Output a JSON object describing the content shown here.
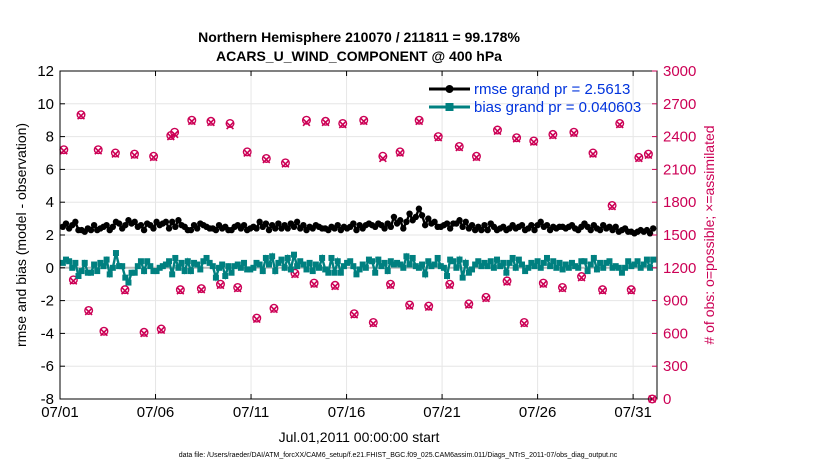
{
  "chart_data": {
    "type": "line",
    "title_line1": "Northern Hemisphere 210070 / 211811 = 99.178%",
    "title_line2": "ACARS_U_WIND_COMPONENT @ 400 hPa",
    "xlabel": "Jul.01,2011 00:00:00 start",
    "ylabel_left": "rmse and bias (model - observation)",
    "ylabel_right": "# of obs: o=possible; ×=assimilated",
    "footer": "data file: /Users/raeder/DAI/ATM_forcXX/CAM6_setup/f.e21.FHIST_BGC.f09_025.CAM6assim.011/Diags_NTrS_2011-07/obs_diag_output.nc",
    "xlim": [
      0,
      31.25
    ],
    "ylim_left": [
      -8,
      12
    ],
    "ylim_right": [
      0,
      3000
    ],
    "x_ticks": [
      0,
      5,
      10,
      15,
      20,
      25,
      30
    ],
    "x_tick_labels": [
      "07/01",
      "07/06",
      "07/11",
      "07/16",
      "07/21",
      "07/26",
      "07/31"
    ],
    "y_ticks_left": [
      "-8",
      "-6",
      "-4",
      "-2",
      "0",
      "2",
      "4",
      "6",
      "8",
      "10",
      "12"
    ],
    "y_ticks_right": [
      "0",
      "300",
      "600",
      "900",
      "1200",
      "1500",
      "1800",
      "2100",
      "2400",
      "2700",
      "3000"
    ],
    "legend": {
      "rmse_label": "rmse grand pr = 2.5613",
      "bias_label": "bias grand pr = 0.040603",
      "position": "top-right"
    },
    "colors": {
      "rmse": "#000000",
      "bias": "#008080",
      "obs": "#cc0055",
      "zero_line": "#bbbbbb",
      "legend_text": "#0033dd"
    },
    "series_rmse": [
      2.5,
      2.7,
      2.4,
      2.6,
      2.8,
      2.3,
      2.3,
      2.2,
      2.4,
      2.3,
      2.6,
      2.3,
      2.4,
      2.5,
      2.6,
      2.3,
      2.5,
      2.8,
      2.7,
      2.4,
      2.6,
      2.9,
      2.7,
      2.8,
      2.5,
      2.6,
      2.3,
      2.7,
      2.6,
      2.4,
      2.8,
      2.6,
      2.7,
      2.8,
      2.4,
      2.8,
      2.5,
      2.9,
      2.6,
      2.5,
      2.3,
      2.3,
      2.6,
      2.4,
      2.7,
      2.6,
      2.5,
      2.4,
      2.4,
      2.3,
      2.6,
      2.4,
      2.5,
      2.3,
      2.3,
      2.5,
      2.6,
      2.4,
      2.6,
      2.3,
      2.4,
      2.5,
      2.4,
      2.8,
      2.5,
      2.7,
      2.3,
      2.6,
      2.4,
      2.7,
      2.4,
      2.6,
      2.4,
      2.7,
      2.5,
      2.8,
      2.4,
      2.6,
      2.3,
      2.5,
      2.4,
      2.6,
      2.5,
      2.4,
      2.4,
      2.3,
      2.5,
      2.4,
      2.6,
      2.3,
      2.5,
      2.4,
      2.5,
      2.7,
      2.3,
      2.6,
      2.4,
      2.6,
      2.7,
      2.6,
      2.5,
      2.7,
      2.6,
      2.4,
      2.7,
      2.5,
      3.1,
      2.7,
      2.9,
      2.4,
      2.8,
      3.3,
      2.9,
      3.1,
      3.6,
      3.2,
      2.6,
      3.0,
      2.7,
      2.8,
      2.5,
      2.5,
      2.6,
      2.7,
      2.4,
      2.7,
      2.7,
      2.9,
      2.5,
      2.8,
      2.4,
      2.6,
      2.3,
      2.5,
      2.3,
      2.6,
      2.3,
      2.7,
      2.5,
      2.3,
      2.4,
      2.5,
      2.3,
      2.4,
      2.6,
      2.4,
      2.5,
      2.6,
      2.3,
      2.4,
      2.6,
      2.3,
      2.6,
      2.8,
      2.5,
      2.6,
      2.3,
      2.5,
      2.4,
      2.5,
      2.5,
      2.4,
      2.5,
      2.6,
      2.4,
      2.3,
      2.5,
      2.7,
      2.5,
      2.3,
      2.6,
      2.4,
      2.3,
      2.6,
      2.4,
      2.5,
      2.3,
      2.5,
      2.2,
      2.3,
      2.4,
      2.2,
      2.2,
      2.1,
      2.2,
      2.3,
      2.2,
      2.3,
      2.1,
      2.4
    ],
    "series_bias": [
      0.3,
      0.5,
      0.4,
      0.0,
      0.3,
      -0.5,
      -0.2,
      0.3,
      -0.3,
      -0.3,
      0.2,
      -0.2,
      0.3,
      0.1,
      0.5,
      -0.4,
      0.0,
      0.9,
      0.1,
      0.1,
      -0.6,
      -0.9,
      -0.3,
      -0.3,
      0.1,
      0.4,
      -0.2,
      0.4,
      0.1,
      -0.2,
      -0.2,
      0.0,
      0.1,
      0.2,
      0.4,
      -0.4,
      0.6,
      0.0,
      0.3,
      -0.2,
      0.4,
      -0.2,
      0.3,
      0.2,
      -0.1,
      0.4,
      0.6,
      0.3,
      0.1,
      -0.6,
      0.0,
      0.2,
      -0.5,
      0.1,
      -0.3,
      0.1,
      0.2,
      0.0,
      0.3,
      -0.1,
      -0.1,
      0.0,
      0.3,
      0.2,
      -0.2,
      0.6,
      0.2,
      0.7,
      -0.2,
      0.3,
      0.5,
      0.0,
      0.6,
      -0.1,
      0.8,
      0.1,
      0.4,
      0.2,
      -0.1,
      0.3,
      -0.2,
      0.2,
      0.0,
      0.6,
      -0.1,
      -0.3,
      0.6,
      -0.3,
      0.4,
      -0.3,
      0.1,
      0.3,
      0.4,
      0.1,
      -0.4,
      -0.1,
      0.2,
      0.0,
      0.5,
      0.4,
      -0.3,
      0.5,
      0.1,
      0.3,
      -0.2,
      0.4,
      0.2,
      0.3,
      0.2,
      0.0,
      0.7,
      0.2,
      0.6,
      0.1,
      0.0,
      0.2,
      -0.4,
      0.4,
      0.1,
      0.2,
      0.6,
      0.1,
      0.0,
      -0.5,
      0.5,
      0.4,
      0.0,
      0.5,
      -0.6,
      0.3,
      -0.3,
      -0.1,
      0.2,
      0.4,
      0.1,
      0.3,
      0.1,
      0.4,
      0.0,
      0.5,
      0.1,
      0.3,
      -0.3,
      0.3,
      0.6,
      0.0,
      0.5,
      0.2,
      -0.2,
      0.0,
      0.3,
      0.1,
      0.4,
      0.0,
      0.3,
      0.6,
      0.1,
      0.4,
      0.0,
      0.3,
      -0.1,
      0.2,
      0.0,
      0.3,
      0.1,
      0.0,
      0.4,
      0.4,
      -0.2,
      0.2,
      0.6,
      -0.1,
      0.3,
      0.0,
      0.3,
      0.4,
      0.0,
      0.1,
      0.0,
      -0.3,
      0.0,
      0.4,
      0.1,
      0.2,
      0.4,
      0.0,
      0.2,
      0.5,
      0.0,
      0.5
    ],
    "series_obs_possible": [
      [
        0.2,
        2280
      ],
      [
        0.7,
        1090
      ],
      [
        1.1,
        2600
      ],
      [
        1.5,
        810
      ],
      [
        2.0,
        2280
      ],
      [
        2.3,
        620
      ],
      [
        2.9,
        2250
      ],
      [
        3.4,
        1000
      ],
      [
        3.9,
        2240
      ],
      [
        4.4,
        610
      ],
      [
        4.9,
        2220
      ],
      [
        5.3,
        640
      ],
      [
        5.8,
        2410
      ],
      [
        6.0,
        2440
      ],
      [
        6.3,
        1000
      ],
      [
        6.9,
        2550
      ],
      [
        7.4,
        1010
      ],
      [
        7.9,
        2540
      ],
      [
        8.4,
        1050
      ],
      [
        8.9,
        2520
      ],
      [
        9.3,
        1020
      ],
      [
        9.8,
        2260
      ],
      [
        10.3,
        740
      ],
      [
        10.8,
        2200
      ],
      [
        11.2,
        830
      ],
      [
        11.8,
        2160
      ],
      [
        12.3,
        1150
      ],
      [
        12.9,
        2550
      ],
      [
        13.3,
        1060
      ],
      [
        13.9,
        2540
      ],
      [
        14.4,
        1040
      ],
      [
        14.8,
        2520
      ],
      [
        15.4,
        780
      ],
      [
        15.9,
        2550
      ],
      [
        16.4,
        700
      ],
      [
        16.9,
        2220
      ],
      [
        17.3,
        1050
      ],
      [
        17.8,
        2260
      ],
      [
        18.3,
        860
      ],
      [
        18.8,
        2550
      ],
      [
        19.3,
        850
      ],
      [
        19.8,
        2400
      ],
      [
        20.4,
        1050
      ],
      [
        20.9,
        2310
      ],
      [
        21.4,
        870
      ],
      [
        21.8,
        2220
      ],
      [
        22.3,
        930
      ],
      [
        22.9,
        2460
      ],
      [
        23.4,
        1080
      ],
      [
        23.9,
        2390
      ],
      [
        24.3,
        700
      ],
      [
        24.8,
        2360
      ],
      [
        25.3,
        1060
      ],
      [
        25.8,
        2420
      ],
      [
        26.3,
        1020
      ],
      [
        26.9,
        2440
      ],
      [
        27.3,
        1120
      ],
      [
        27.9,
        2250
      ],
      [
        28.4,
        1000
      ],
      [
        28.9,
        1770
      ],
      [
        29.3,
        2520
      ],
      [
        29.9,
        1000
      ],
      [
        30.3,
        2210
      ],
      [
        30.8,
        2240
      ],
      [
        31.0,
        0
      ]
    ],
    "series_obs_assimilated": [
      [
        0.2,
        2270
      ],
      [
        0.7,
        1080
      ],
      [
        1.1,
        2590
      ],
      [
        1.5,
        800
      ],
      [
        2.0,
        2270
      ],
      [
        2.3,
        610
      ],
      [
        2.9,
        2240
      ],
      [
        3.4,
        990
      ],
      [
        3.9,
        2230
      ],
      [
        4.4,
        600
      ],
      [
        4.9,
        2210
      ],
      [
        5.3,
        630
      ],
      [
        5.8,
        2400
      ],
      [
        6.0,
        2420
      ],
      [
        6.3,
        990
      ],
      [
        6.9,
        2540
      ],
      [
        7.4,
        1000
      ],
      [
        7.9,
        2530
      ],
      [
        8.4,
        1040
      ],
      [
        8.9,
        2500
      ],
      [
        9.3,
        1010
      ],
      [
        9.8,
        2250
      ],
      [
        10.3,
        730
      ],
      [
        10.8,
        2190
      ],
      [
        11.2,
        820
      ],
      [
        11.8,
        2150
      ],
      [
        12.3,
        1140
      ],
      [
        12.9,
        2530
      ],
      [
        13.3,
        1050
      ],
      [
        13.9,
        2530
      ],
      [
        14.4,
        1030
      ],
      [
        14.8,
        2510
      ],
      [
        15.4,
        770
      ],
      [
        15.9,
        2540
      ],
      [
        16.4,
        690
      ],
      [
        16.9,
        2200
      ],
      [
        17.3,
        1040
      ],
      [
        17.8,
        2250
      ],
      [
        18.3,
        850
      ],
      [
        18.8,
        2540
      ],
      [
        19.3,
        840
      ],
      [
        19.8,
        2390
      ],
      [
        20.4,
        1040
      ],
      [
        20.9,
        2300
      ],
      [
        21.4,
        860
      ],
      [
        21.8,
        2210
      ],
      [
        22.3,
        920
      ],
      [
        22.9,
        2450
      ],
      [
        23.4,
        1070
      ],
      [
        23.9,
        2380
      ],
      [
        24.3,
        690
      ],
      [
        24.8,
        2350
      ],
      [
        25.3,
        1050
      ],
      [
        25.8,
        2410
      ],
      [
        26.3,
        1010
      ],
      [
        26.9,
        2430
      ],
      [
        27.3,
        1110
      ],
      [
        27.9,
        2240
      ],
      [
        28.4,
        990
      ],
      [
        28.9,
        1760
      ],
      [
        29.3,
        2510
      ],
      [
        29.9,
        990
      ],
      [
        30.3,
        2200
      ],
      [
        30.8,
        2230
      ],
      [
        31.0,
        0
      ]
    ]
  }
}
